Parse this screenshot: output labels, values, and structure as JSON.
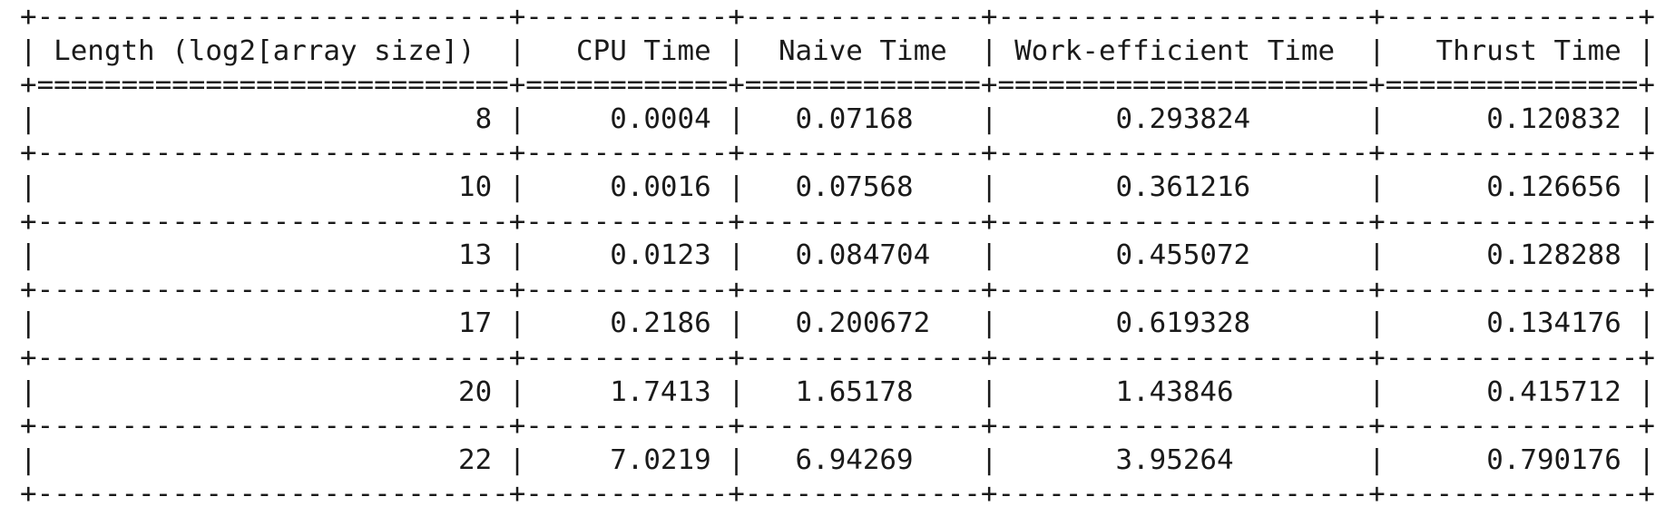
{
  "table": {
    "headers": [
      "Length (log2[array size])",
      "CPU Time",
      "Naive Time",
      "Work-efficient Time",
      "Thrust Time"
    ],
    "rows": [
      [
        "8",
        "0.0004",
        "0.07168",
        "0.293824",
        "0.120832"
      ],
      [
        "10",
        "0.0016",
        "0.07568",
        "0.361216",
        "0.126656"
      ],
      [
        "13",
        "0.0123",
        "0.084704",
        "0.455072",
        "0.128288"
      ],
      [
        "17",
        "0.2186",
        "0.200672",
        "0.619328",
        "0.134176"
      ],
      [
        "20",
        "1.7413",
        "1.65178",
        "1.43846",
        "0.415712"
      ],
      [
        "22",
        "7.0219",
        "6.94269",
        "3.95264",
        "0.790176"
      ]
    ]
  }
}
